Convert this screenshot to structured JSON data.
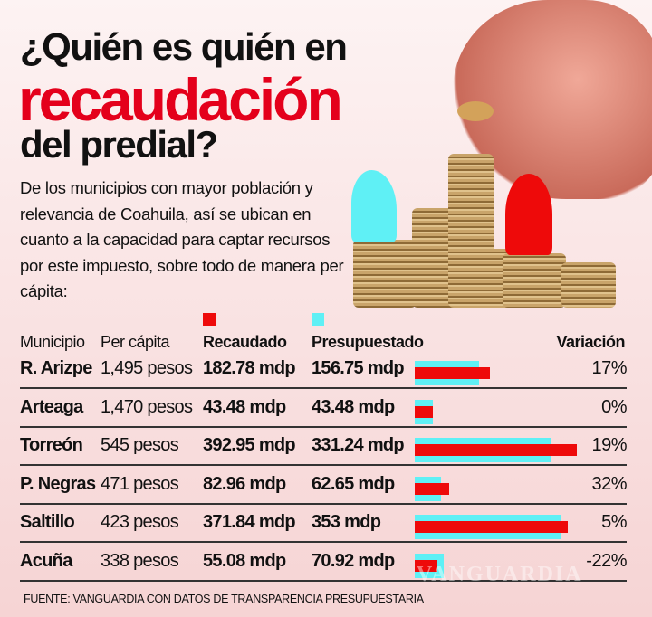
{
  "title": {
    "line1": "¿Quién es quién en",
    "line2": "recaudación",
    "line3": "del predial?"
  },
  "intro": "De los municipios con mayor población y relevancia de Coahuila, así se ubican en cuanto a la capacidad para captar recursos por este impuesto, sobre todo de manera per cápita:",
  "headers": {
    "municipio": "Municipio",
    "per_capita": "Per cápita",
    "recaudado": "Recaudado",
    "presupuestado": "Presupuestado",
    "variacion": "Variación"
  },
  "colors": {
    "recaudado": "#ee0a0a",
    "presupuestado": "#5ff0f5",
    "title_accent": "#e4001b"
  },
  "rows": [
    {
      "municipio": "R. Arizpe",
      "per_capita": "1,495 pesos",
      "recaudado": "182.78 mdp",
      "presupuestado": "156.75 mdp",
      "variacion": "17%"
    },
    {
      "municipio": "Arteaga",
      "per_capita": "1,470 pesos",
      "recaudado": "43.48 mdp",
      "presupuestado": "43.48 mdp",
      "variacion": "0%"
    },
    {
      "municipio": "Torreón",
      "per_capita": "545 pesos",
      "recaudado": "392.95 mdp",
      "presupuestado": "331.24 mdp",
      "variacion": "19%"
    },
    {
      "municipio": "P. Negras",
      "per_capita": "471 pesos",
      "recaudado": "82.96 mdp",
      "presupuestado": "62.65 mdp",
      "variacion": "32%"
    },
    {
      "municipio": "Saltillo",
      "per_capita": "423 pesos",
      "recaudado": "371.84 mdp",
      "presupuestado": "353 mdp",
      "variacion": "5%"
    },
    {
      "municipio": "Acuña",
      "per_capita": "338 pesos",
      "recaudado": "55.08 mdp",
      "presupuestado": "70.92 mdp",
      "variacion": "-22%"
    }
  ],
  "chart_data": {
    "type": "bar",
    "categories": [
      "R. Arizpe",
      "Arteaga",
      "Torreón",
      "P. Negras",
      "Saltillo",
      "Acuña"
    ],
    "series": [
      {
        "name": "Recaudado",
        "values": [
          182.78,
          43.48,
          392.95,
          82.96,
          371.84,
          55.08
        ]
      },
      {
        "name": "Presupuestado",
        "values": [
          156.75,
          43.48,
          331.24,
          62.65,
          353,
          70.92
        ]
      }
    ],
    "unit": "mdp"
  },
  "source": "FUENTE: VANGUARDIA CON DATOS DE TRANSPARENCIA PRESUPUESTARIA",
  "watermark": "VANGUARDIA"
}
